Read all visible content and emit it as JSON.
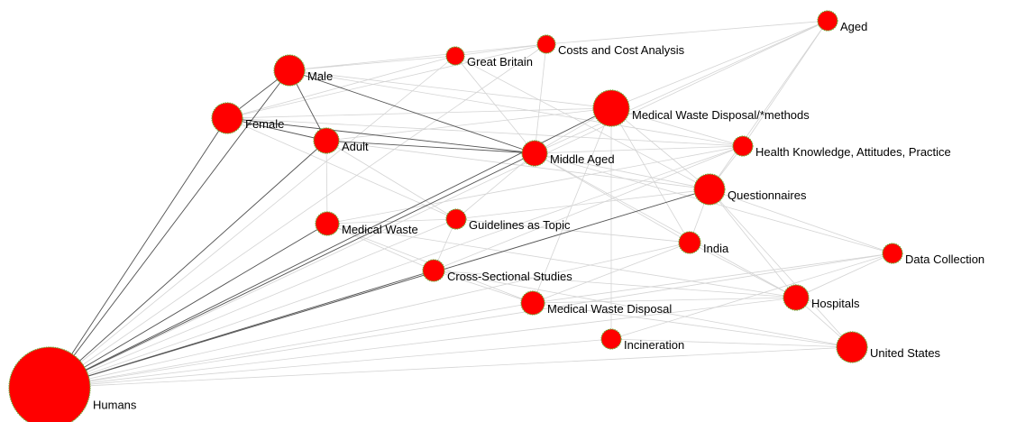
{
  "nodes": [
    {
      "label": "Humans"
    },
    {
      "label": "Female"
    },
    {
      "label": "Male"
    },
    {
      "label": "Adult"
    },
    {
      "label": "Great Britain"
    },
    {
      "label": "Costs and Cost Analysis"
    },
    {
      "label": "Medical Waste Disposal/*methods"
    },
    {
      "label": "Middle Aged"
    },
    {
      "label": "Aged"
    },
    {
      "label": "Health Knowledge, Attitudes, Practice"
    },
    {
      "label": "Questionnaires"
    },
    {
      "label": "Medical Waste"
    },
    {
      "label": "Guidelines as Topic"
    },
    {
      "label": "India"
    },
    {
      "label": "Data Collection"
    },
    {
      "label": "Cross-Sectional Studies"
    },
    {
      "label": "Medical Waste Disposal"
    },
    {
      "label": "Hospitals"
    },
    {
      "label": "Incineration"
    },
    {
      "label": "United States"
    }
  ]
}
